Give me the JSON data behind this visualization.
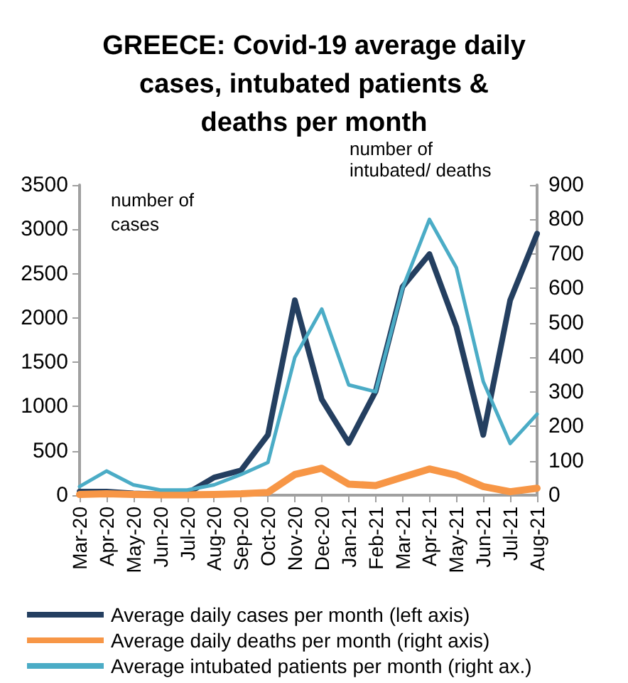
{
  "chart_data": {
    "type": "line",
    "title": "GREECE: Covid-19 average daily cases, intubated patients & deaths per month",
    "ylabel": "number of cases",
    "y2label": "number of intubated/ deaths",
    "categories": [
      "Mar-20",
      "Apr-20",
      "May-20",
      "Jun-20",
      "Jul-20",
      "Aug-20",
      "Sep-20",
      "Oct-20",
      "Nov-20",
      "Dec-20",
      "Jan-21",
      "Feb-21",
      "Mar-21",
      "Apr-21",
      "May-21",
      "Jun-21",
      "Jul-21",
      "Aug-21"
    ],
    "series": [
      {
        "name": "Average daily cases per month (left axis)",
        "color": "#243f60",
        "values": [
          40,
          40,
          20,
          10,
          20,
          200,
          280,
          680,
          2200,
          1080,
          590,
          1170,
          2350,
          2720,
          1900,
          680,
          2200,
          2950
        ]
      },
      {
        "name": "Average daily deaths per month (right axis)",
        "color": "#f79646",
        "axis": "y2",
        "values": [
          2,
          4,
          2,
          1,
          1,
          2,
          4,
          8,
          60,
          78,
          32,
          28,
          52,
          76,
          58,
          25,
          10,
          20
        ]
      },
      {
        "name": "Average intubated patients per month (right ax.)",
        "color": "#4bacc6",
        "axis": "y2",
        "values": [
          25,
          70,
          30,
          15,
          15,
          30,
          60,
          95,
          400,
          540,
          320,
          300,
          600,
          800,
          660,
          330,
          150,
          235
        ]
      }
    ],
    "ylim": [
      0,
      3500
    ],
    "yticks": [
      0,
      500,
      1000,
      1500,
      2000,
      2500,
      3000,
      3500
    ],
    "y2lim": [
      0,
      900
    ],
    "y2ticks": [
      0,
      100,
      200,
      300,
      400,
      500,
      600,
      700,
      800,
      900
    ],
    "grid": false,
    "legend": "bottom",
    "marker": "none",
    "line_style": "solid"
  }
}
